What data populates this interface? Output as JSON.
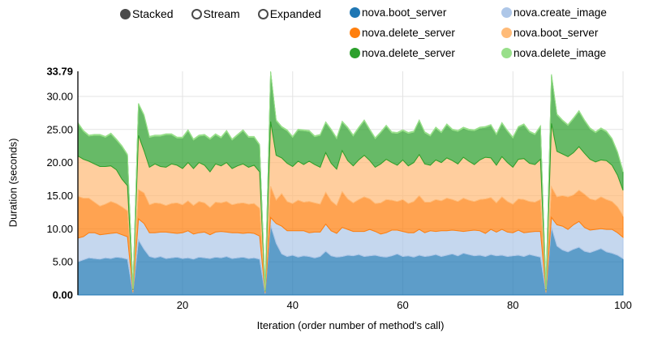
{
  "controls": {
    "options": [
      {
        "label": "Stacked",
        "selected": true
      },
      {
        "label": "Stream",
        "selected": false
      },
      {
        "label": "Expanded",
        "selected": false
      }
    ]
  },
  "chart_data": {
    "type": "area",
    "stacked": true,
    "title": "",
    "xlabel": "Iteration (order number of method's call)",
    "ylabel": "Duration (seconds)",
    "x_range": [
      1,
      100
    ],
    "x_count": 100,
    "ylim": [
      0,
      33.79
    ],
    "y_ticks": [
      0,
      5,
      10,
      15,
      20,
      25,
      30,
      33.79
    ],
    "y_tick_labels": [
      "0.00",
      "5.00",
      "10.00",
      "15.00",
      "20.00",
      "25.00",
      "30.00",
      "33.79"
    ],
    "x_ticks": [
      20,
      40,
      60,
      80,
      100
    ],
    "grid": true,
    "legend_position": "top-right",
    "fill_opacity": 0.72,
    "notes": "Dips to ~0 at iterations 11, 35, 86; spikes at 12 (~29s), 36 (33.79s max), 87 (~33.4s)",
    "series": [
      {
        "name": "nova.boot_server",
        "color": "#1f77b4",
        "values": [
          5.0,
          5.3,
          5.6,
          5.5,
          5.4,
          5.6,
          5.5,
          5.7,
          5.6,
          5.4,
          0.3,
          8.3,
          6.9,
          5.8,
          5.6,
          5.8,
          5.5,
          5.6,
          5.7,
          5.5,
          5.6,
          5.4,
          5.7,
          5.6,
          5.5,
          5.7,
          5.6,
          5.8,
          5.5,
          5.6,
          5.7,
          5.5,
          5.6,
          5.4,
          0.2,
          10.5,
          7.8,
          6.2,
          5.8,
          6.0,
          5.7,
          5.9,
          5.8,
          5.6,
          5.8,
          6.6,
          5.9,
          5.7,
          5.8,
          6.0,
          5.9,
          6.1,
          5.8,
          5.9,
          6.0,
          5.8,
          5.7,
          5.9,
          6.2,
          5.8,
          5.9,
          5.7,
          6.0,
          5.8,
          5.9,
          6.1,
          5.8,
          6.0,
          6.2,
          5.9,
          6.3,
          6.1,
          5.9,
          6.0,
          5.8,
          6.1,
          5.9,
          6.0,
          5.8,
          5.9,
          6.0,
          5.8,
          6.1,
          5.9,
          5.7,
          0.3,
          10.2,
          7.4,
          6.8,
          6.5,
          6.9,
          7.2,
          6.6,
          6.4,
          6.7,
          7.0,
          6.5,
          6.3,
          6.0,
          5.5
        ]
      },
      {
        "name": "nova.create_image",
        "color": "#aec7e8",
        "values": [
          3.6,
          3.5,
          3.8,
          3.9,
          3.7,
          3.6,
          3.8,
          3.7,
          3.5,
          3.4,
          0.1,
          3.2,
          3.9,
          3.6,
          3.8,
          3.7,
          4.0,
          3.8,
          3.6,
          3.9,
          4.1,
          3.8,
          3.7,
          3.9,
          3.6,
          3.8,
          4.0,
          3.7,
          3.9,
          3.8,
          3.6,
          3.9,
          3.7,
          3.5,
          0.1,
          1.2,
          3.0,
          4.2,
          3.9,
          3.7,
          4.0,
          3.8,
          3.6,
          3.9,
          3.7,
          4.1,
          3.8,
          3.6,
          4.4,
          3.9,
          3.7,
          3.5,
          3.8,
          4.0,
          3.6,
          3.4,
          3.7,
          3.9,
          3.6,
          3.8,
          3.5,
          3.7,
          3.9,
          3.6,
          3.8,
          3.5,
          3.9,
          3.7,
          3.6,
          3.8,
          3.3,
          3.6,
          3.9,
          3.7,
          3.5,
          3.8,
          3.6,
          3.9,
          3.7,
          3.5,
          3.8,
          3.6,
          3.4,
          3.7,
          3.9,
          0.1,
          1.5,
          3.2,
          3.6,
          3.4,
          3.7,
          3.9,
          3.6,
          3.4,
          3.2,
          3.0,
          3.4,
          3.6,
          3.4,
          3.2
        ]
      },
      {
        "name": "nova.delete_server",
        "color": "#ff7f0e",
        "values": [
          6.3,
          5.8,
          5.2,
          4.6,
          4.3,
          4.5,
          4.8,
          4.4,
          4.2,
          3.9,
          0.15,
          4.4,
          4.6,
          4.2,
          4.5,
          4.3,
          4.0,
          4.4,
          4.6,
          4.2,
          4.5,
          4.3,
          4.7,
          4.4,
          4.1,
          4.5,
          4.3,
          4.6,
          4.2,
          4.4,
          4.6,
          4.3,
          4.5,
          4.2,
          0.1,
          4.7,
          3.5,
          4.9,
          4.4,
          4.1,
          4.6,
          4.3,
          4.7,
          4.4,
          4.2,
          4.8,
          4.5,
          4.2,
          5.4,
          4.6,
          4.3,
          4.8,
          5.2,
          4.6,
          4.2,
          4.7,
          5.0,
          4.5,
          4.3,
          4.8,
          4.4,
          4.7,
          5.1,
          4.6,
          4.3,
          4.8,
          4.5,
          4.9,
          4.6,
          4.4,
          5.0,
          4.6,
          4.3,
          4.7,
          5.2,
          4.8,
          4.4,
          4.9,
          4.6,
          4.3,
          4.7,
          5.0,
          4.6,
          4.4,
          4.8,
          0.1,
          4.6,
          4.2,
          4.6,
          4.9,
          4.5,
          4.7,
          5.0,
          4.7,
          4.4,
          4.8,
          4.5,
          4.2,
          3.9,
          3.3
        ]
      },
      {
        "name": "nova.boot_server",
        "color": "#ffbb78",
        "values": [
          6.1,
          5.9,
          5.6,
          5.8,
          6.0,
          5.7,
          5.4,
          5.1,
          4.2,
          3.8,
          0.2,
          8.2,
          6.4,
          5.7,
          5.9,
          5.6,
          5.8,
          6.0,
          5.7,
          5.5,
          5.8,
          5.6,
          5.9,
          5.7,
          5.4,
          5.8,
          5.6,
          5.9,
          5.5,
          5.7,
          5.9,
          5.6,
          5.8,
          5.5,
          0.15,
          9.8,
          6.8,
          5.4,
          5.8,
          5.6,
          5.9,
          5.7,
          6.1,
          5.8,
          5.6,
          6.0,
          5.7,
          5.5,
          6.2,
          5.8,
          5.6,
          6.0,
          6.3,
          5.8,
          5.5,
          5.9,
          6.1,
          5.7,
          5.5,
          6.0,
          5.7,
          5.9,
          6.2,
          5.8,
          5.6,
          6.0,
          5.8,
          6.1,
          5.9,
          5.7,
          6.2,
          5.9,
          5.6,
          6.0,
          6.3,
          6.0,
          5.7,
          6.1,
          5.9,
          5.6,
          6.0,
          6.2,
          5.8,
          5.7,
          6.1,
          0.2,
          9.6,
          6.9,
          6.3,
          6.1,
          6.4,
          6.6,
          6.2,
          6.0,
          5.8,
          5.6,
          5.9,
          5.5,
          4.8,
          3.8
        ]
      },
      {
        "name": "nova.delete_server",
        "color": "#2ca02c",
        "values": [
          4.9,
          4.2,
          3.8,
          4.3,
          4.7,
          4.4,
          4.8,
          4.5,
          4.9,
          4.6,
          0.15,
          4.7,
          5.3,
          4.5,
          4.2,
          4.6,
          4.9,
          4.4,
          4.1,
          4.6,
          4.8,
          4.3,
          4.0,
          4.5,
          4.9,
          4.4,
          4.2,
          4.7,
          4.3,
          4.6,
          5.0,
          4.5,
          4.2,
          4.0,
          0.1,
          7.44,
          5.2,
          4.6,
          4.9,
          4.4,
          4.7,
          5.1,
          4.5,
          4.2,
          4.8,
          4.5,
          5.0,
          4.6,
          4.3,
          4.9,
          4.5,
          4.8,
          5.2,
          4.6,
          4.3,
          4.7,
          5.0,
          4.5,
          4.8,
          4.4,
          4.9,
          4.6,
          5.1,
          4.7,
          4.4,
          4.8,
          4.5,
          5.0,
          4.6,
          4.9,
          4.4,
          4.7,
          5.1,
          4.8,
          4.5,
          4.9,
          4.6,
          5.0,
          4.7,
          4.4,
          4.8,
          5.1,
          4.7,
          4.5,
          4.9,
          0.15,
          7.3,
          5.5,
          5.0,
          4.7,
          5.1,
          5.3,
          4.9,
          4.6,
          4.4,
          4.7,
          4.3,
          3.9,
          3.4,
          2.8
        ]
      },
      {
        "name": "nova.delete_image",
        "color": "#98df8a",
        "values": [
          0.15,
          0.15,
          0.15,
          0.15,
          0.15,
          0.15,
          0.15,
          0.15,
          0.15,
          0.15,
          0.05,
          0.15,
          0.15,
          0.15,
          0.15,
          0.15,
          0.15,
          0.15,
          0.15,
          0.15,
          0.15,
          0.15,
          0.15,
          0.15,
          0.15,
          0.15,
          0.15,
          0.15,
          0.15,
          0.15,
          0.15,
          0.15,
          0.15,
          0.15,
          0.05,
          0.15,
          0.15,
          0.15,
          0.15,
          0.15,
          0.15,
          0.15,
          0.15,
          0.15,
          0.15,
          0.15,
          0.15,
          0.15,
          0.15,
          0.15,
          0.15,
          0.15,
          0.15,
          0.15,
          0.15,
          0.15,
          0.15,
          0.15,
          0.15,
          0.15,
          0.15,
          0.15,
          0.15,
          0.15,
          0.15,
          0.15,
          0.15,
          0.15,
          0.15,
          0.15,
          0.15,
          0.15,
          0.15,
          0.15,
          0.15,
          0.15,
          0.15,
          0.15,
          0.15,
          0.15,
          0.15,
          0.15,
          0.15,
          0.15,
          0.15,
          0.05,
          0.15,
          0.15,
          0.15,
          0.15,
          0.15,
          0.15,
          0.15,
          0.15,
          0.15,
          0.15,
          0.15,
          0.15,
          0.15,
          0.15
        ]
      }
    ]
  }
}
